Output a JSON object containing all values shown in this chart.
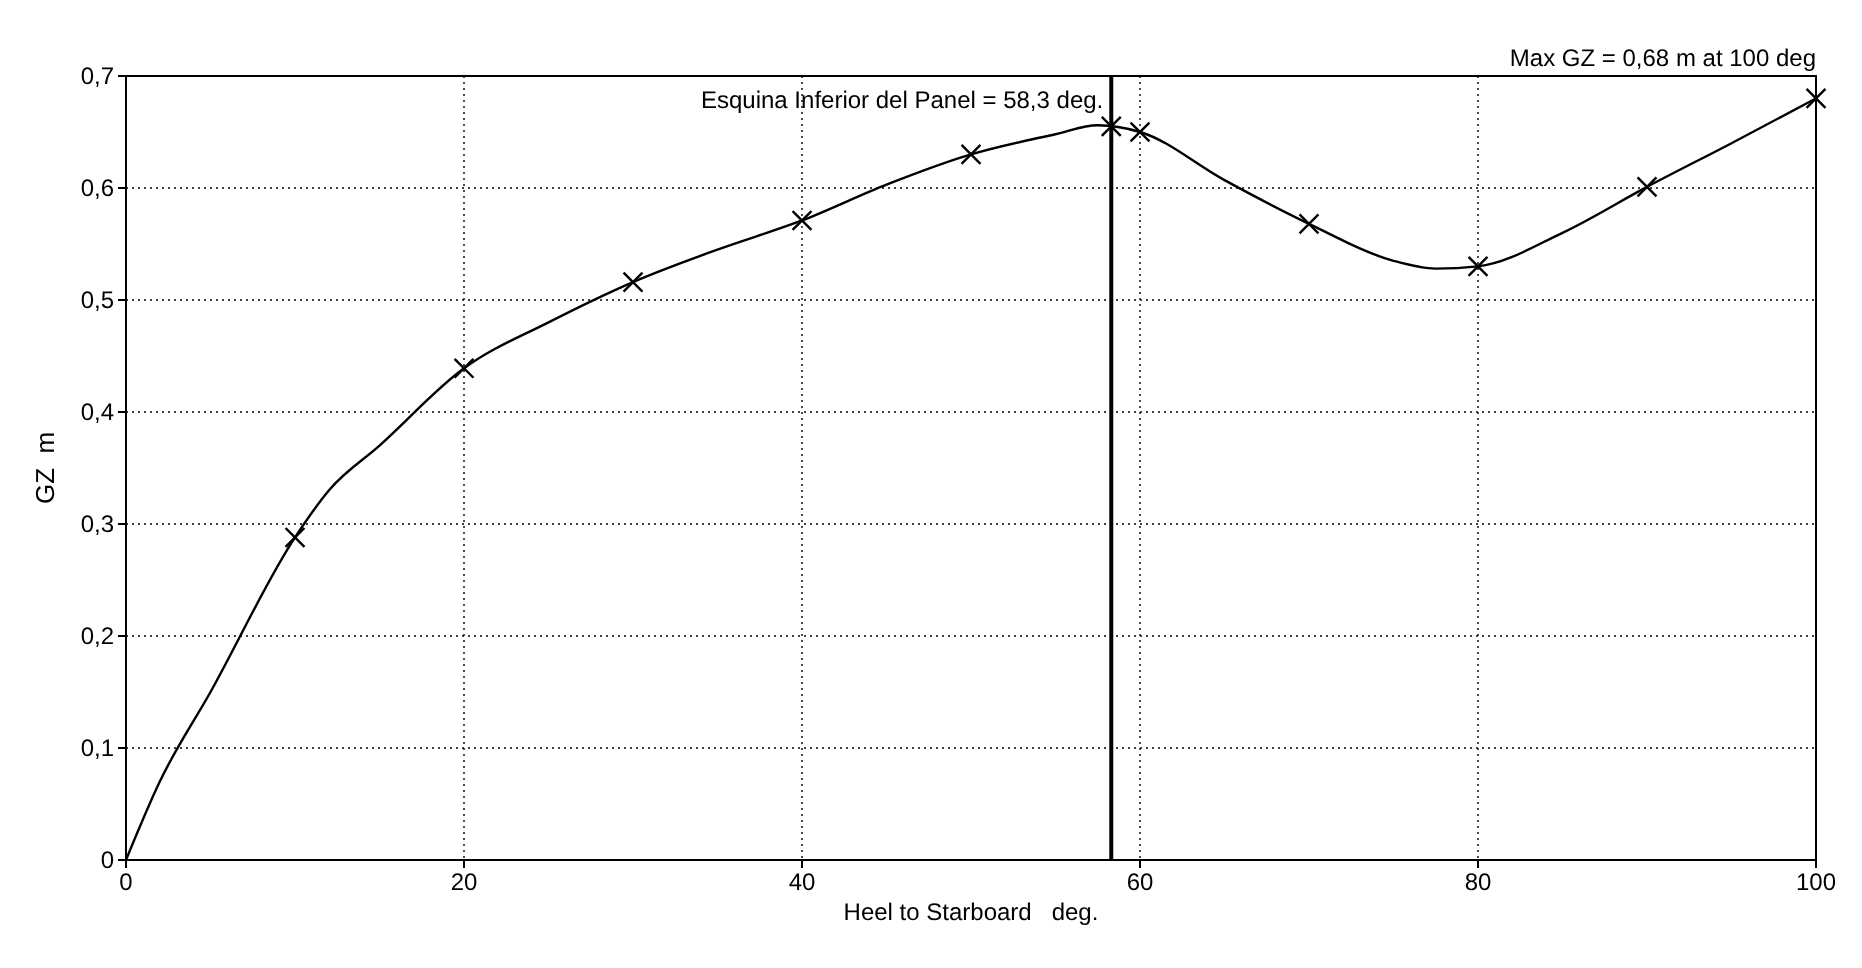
{
  "chart_data": {
    "type": "line",
    "xlabel": "Heel to Starboard   deg.",
    "ylabel": "GZ  m",
    "xlim": [
      0,
      100
    ],
    "xticks": [
      0,
      20,
      40,
      60,
      80,
      100
    ],
    "ylim": [
      0,
      0.7
    ],
    "yticks": [
      0,
      {
        "value": 0.1,
        "label": "0,1"
      },
      {
        "value": 0.2,
        "label": "0,2"
      },
      {
        "value": 0.3,
        "label": "0,3"
      },
      {
        "value": 0.4,
        "label": "0,4"
      },
      {
        "value": 0.5,
        "label": "0,5"
      },
      {
        "value": 0.6,
        "label": "0,6"
      },
      {
        "value": 0.7,
        "label": "0,7"
      }
    ],
    "grid": true,
    "line_style": "solid",
    "series": [
      {
        "type": "line",
        "color": "#000000",
        "marker": "none",
        "x": [
          0,
          2,
          5,
          10,
          12,
          15,
          20,
          25,
          30,
          35,
          40,
          45,
          50,
          55,
          57.5,
          60,
          65,
          70,
          75,
          77.5,
          80,
          85,
          90,
          95,
          100
        ],
        "values": [
          0,
          0.07,
          0.15,
          0.288,
          0.33,
          0.37,
          0.439,
          0.48,
          0.516,
          0.545,
          0.571,
          0.603,
          0.63,
          0.648,
          0.656,
          0.65,
          0.607,
          0.568,
          0.535,
          0.528,
          0.53,
          0.56,
          0.601,
          0.64,
          0.68
        ]
      },
      {
        "type": "scatter",
        "color": "#000000",
        "marker": "cross",
        "x": [
          10,
          20,
          30,
          40,
          50,
          58.3,
          60,
          70,
          80,
          90,
          100
        ],
        "values": [
          0.288,
          0.439,
          0.516,
          0.571,
          0.63,
          0.655,
          0.65,
          0.568,
          0.53,
          0.601,
          0.68
        ]
      }
    ],
    "ref_lines": [
      {
        "axis": "x",
        "value": 58.3,
        "label": "Esquina Inferior del Panel = 58,3 deg.",
        "color": "#000000"
      }
    ],
    "annotations": [
      {
        "text": "Max GZ = 0,68 m at 100 deg",
        "x": 100,
        "y": 0.68
      }
    ]
  }
}
